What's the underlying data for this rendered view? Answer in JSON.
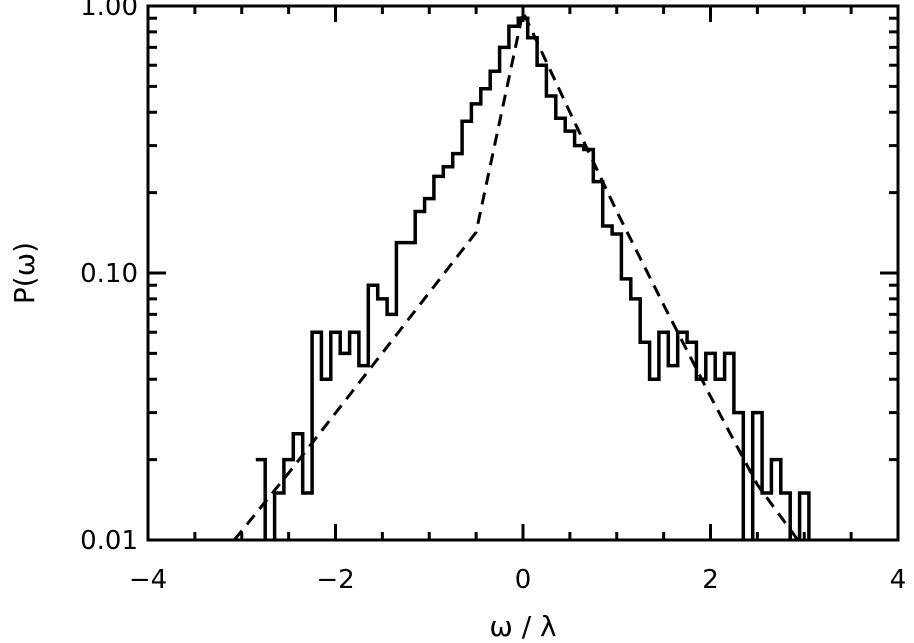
{
  "chart_data": {
    "type": "line",
    "xlabel": "ω / λ",
    "ylabel": "P(ω)",
    "xlim": [
      -4,
      4
    ],
    "ylim": [
      0.01,
      1.0
    ],
    "yscale": "log",
    "grid": false,
    "x_ticks": [
      -4,
      -2,
      0,
      2,
      4
    ],
    "x_tick_labels": [
      "−4",
      "−2",
      "0",
      "2",
      "4"
    ],
    "y_ticks": [
      0.01,
      0.1,
      1.0
    ],
    "y_tick_labels": [
      "0.01",
      "0.10",
      "1.00"
    ],
    "series": [
      {
        "style": "solid-step",
        "color": "#000000",
        "x": [
          -2.8,
          -2.7,
          -2.6,
          -2.5,
          -2.4,
          -2.3,
          -2.2,
          -2.1,
          -2.0,
          -1.9,
          -1.8,
          -1.7,
          -1.6,
          -1.5,
          -1.4,
          -1.3,
          -1.2,
          -1.1,
          -1.0,
          -0.9,
          -0.8,
          -0.7,
          -0.6,
          -0.5,
          -0.4,
          -0.3,
          -0.2,
          -0.1,
          0.0,
          0.1,
          0.2,
          0.3,
          0.4,
          0.5,
          0.6,
          0.7,
          0.8,
          0.9,
          1.0,
          1.1,
          1.2,
          1.3,
          1.4,
          1.5,
          1.6,
          1.7,
          1.8,
          1.9,
          2.0,
          2.1,
          2.2,
          2.3,
          2.4,
          2.5,
          2.6,
          2.7,
          2.8,
          2.9,
          3.0,
          3.1
        ],
        "y": [
          0.02,
          0.005,
          0.015,
          0.02,
          0.025,
          0.015,
          0.06,
          0.04,
          0.06,
          0.05,
          0.06,
          0.045,
          0.09,
          0.08,
          0.07,
          0.13,
          0.13,
          0.17,
          0.19,
          0.23,
          0.25,
          0.28,
          0.37,
          0.43,
          0.49,
          0.57,
          0.7,
          0.84,
          0.9,
          0.76,
          0.6,
          0.46,
          0.38,
          0.34,
          0.3,
          0.29,
          0.22,
          0.15,
          0.14,
          0.095,
          0.08,
          0.055,
          0.04,
          0.06,
          0.045,
          0.06,
          0.055,
          0.04,
          0.05,
          0.04,
          0.05,
          0.03,
          0.009,
          0.03,
          0.015,
          0.02,
          0.015,
          0.009,
          0.015,
          0.009
        ]
      },
      {
        "style": "dashed",
        "color": "#000000",
        "x": [
          -3.08,
          -2.5,
          -2.0,
          -1.5,
          -1.0,
          -0.5,
          0.0,
          0.5,
          1.0,
          1.5,
          2.0,
          2.5,
          2.95
        ],
        "y": [
          0.01,
          0.0178,
          0.0299,
          0.0502,
          0.0845,
          0.1421,
          0.95,
          0.4,
          0.17,
          0.076,
          0.0345,
          0.0161,
          0.0098
        ]
      }
    ]
  }
}
